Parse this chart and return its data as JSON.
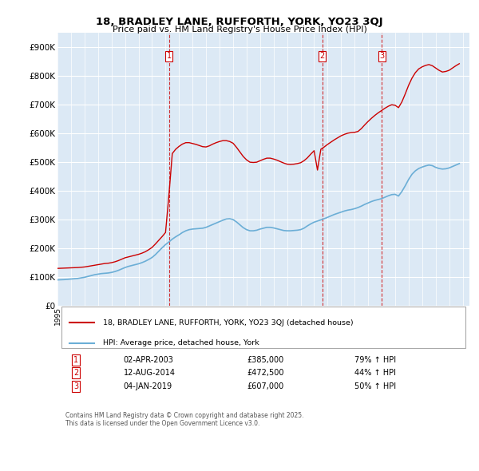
{
  "title": "18, BRADLEY LANE, RUFFORTH, YORK, YO23 3QJ",
  "subtitle": "Price paid vs. HM Land Registry's House Price Index (HPI)",
  "background_color": "#dce9f5",
  "plot_bg_color": "#dce9f5",
  "ylim": [
    0,
    950000
  ],
  "yticks": [
    0,
    100000,
    200000,
    300000,
    400000,
    500000,
    600000,
    700000,
    800000,
    900000
  ],
  "ytick_labels": [
    "£0",
    "£100K",
    "£200K",
    "£300K",
    "£400K",
    "£500K",
    "£600K",
    "£700K",
    "£800K",
    "£900K"
  ],
  "hpi_color": "#6baed6",
  "price_color": "#cc0000",
  "vline_color": "#cc0000",
  "sale_dates": [
    "2003-04-02",
    "2014-08-12",
    "2019-01-04"
  ],
  "sale_prices": [
    385000,
    472500,
    607000
  ],
  "sale_labels": [
    "1",
    "2",
    "3"
  ],
  "legend_label_price": "18, BRADLEY LANE, RUFFORTH, YORK, YO23 3QJ (detached house)",
  "legend_label_hpi": "HPI: Average price, detached house, York",
  "table_rows": [
    {
      "num": "1",
      "date": "02-APR-2003",
      "price": "£385,000",
      "change": "79% ↑ HPI"
    },
    {
      "num": "2",
      "date": "12-AUG-2014",
      "price": "£472,500",
      "change": "44% ↑ HPI"
    },
    {
      "num": "3",
      "date": "04-JAN-2019",
      "price": "£607,000",
      "change": "50% ↑ HPI"
    }
  ],
  "footer": "Contains HM Land Registry data © Crown copyright and database right 2025.\nThis data is licensed under the Open Government Licence v3.0.",
  "hpi_data": {
    "years": [
      1995,
      1995.25,
      1995.5,
      1995.75,
      1996,
      1996.25,
      1996.5,
      1996.75,
      1997,
      1997.25,
      1997.5,
      1997.75,
      1998,
      1998.25,
      1998.5,
      1998.75,
      1999,
      1999.25,
      1999.5,
      1999.75,
      2000,
      2000.25,
      2000.5,
      2000.75,
      2001,
      2001.25,
      2001.5,
      2001.75,
      2002,
      2002.25,
      2002.5,
      2002.75,
      2003,
      2003.25,
      2003.5,
      2003.75,
      2004,
      2004.25,
      2004.5,
      2004.75,
      2005,
      2005.25,
      2005.5,
      2005.75,
      2006,
      2006.25,
      2006.5,
      2006.75,
      2007,
      2007.25,
      2007.5,
      2007.75,
      2008,
      2008.25,
      2008.5,
      2008.75,
      2009,
      2009.25,
      2009.5,
      2009.75,
      2010,
      2010.25,
      2010.5,
      2010.75,
      2011,
      2011.25,
      2011.5,
      2011.75,
      2012,
      2012.25,
      2012.5,
      2012.75,
      2013,
      2013.25,
      2013.5,
      2013.75,
      2014,
      2014.25,
      2014.5,
      2014.75,
      2015,
      2015.25,
      2015.5,
      2015.75,
      2016,
      2016.25,
      2016.5,
      2016.75,
      2017,
      2017.25,
      2017.5,
      2017.75,
      2018,
      2018.25,
      2018.5,
      2018.75,
      2019,
      2019.25,
      2019.5,
      2019.75,
      2020,
      2020.25,
      2020.5,
      2020.75,
      2021,
      2021.25,
      2021.5,
      2021.75,
      2022,
      2022.25,
      2022.5,
      2022.75,
      2023,
      2023.25,
      2023.5,
      2023.75,
      2024,
      2024.25,
      2024.5,
      2024.75
    ],
    "values": [
      90000,
      90500,
      91000,
      92000,
      93000,
      94000,
      95000,
      97000,
      99000,
      102000,
      105000,
      108000,
      110000,
      112000,
      113000,
      114000,
      116000,
      119000,
      123000,
      128000,
      133000,
      137000,
      140000,
      143000,
      146000,
      150000,
      155000,
      161000,
      168000,
      178000,
      190000,
      202000,
      213000,
      222000,
      232000,
      240000,
      247000,
      255000,
      261000,
      265000,
      267000,
      268000,
      269000,
      270000,
      273000,
      278000,
      283000,
      288000,
      293000,
      298000,
      302000,
      303000,
      300000,
      292000,
      282000,
      272000,
      265000,
      261000,
      261000,
      263000,
      267000,
      270000,
      273000,
      273000,
      271000,
      268000,
      265000,
      262000,
      261000,
      261000,
      262000,
      263000,
      265000,
      270000,
      278000,
      285000,
      291000,
      295000,
      299000,
      303000,
      308000,
      313000,
      318000,
      322000,
      326000,
      330000,
      333000,
      335000,
      338000,
      342000,
      347000,
      353000,
      358000,
      363000,
      367000,
      370000,
      373000,
      378000,
      383000,
      387000,
      388000,
      382000,
      398000,
      418000,
      440000,
      458000,
      470000,
      478000,
      483000,
      487000,
      490000,
      488000,
      482000,
      478000,
      476000,
      477000,
      480000,
      485000,
      490000,
      495000
    ]
  },
  "price_data": {
    "years": [
      1995,
      1995.25,
      1995.5,
      1995.75,
      1996,
      1996.25,
      1996.5,
      1996.75,
      1997,
      1997.25,
      1997.5,
      1997.75,
      1998,
      1998.25,
      1998.5,
      1998.75,
      1999,
      1999.25,
      1999.5,
      1999.75,
      2000,
      2000.25,
      2000.5,
      2000.75,
      2001,
      2001.25,
      2001.5,
      2001.75,
      2002,
      2002.25,
      2002.5,
      2002.75,
      2003,
      2003.25,
      2003.5,
      2003.75,
      2004,
      2004.25,
      2004.5,
      2004.75,
      2005,
      2005.25,
      2005.5,
      2005.75,
      2006,
      2006.25,
      2006.5,
      2006.75,
      2007,
      2007.25,
      2007.5,
      2007.75,
      2008,
      2008.25,
      2008.5,
      2008.75,
      2009,
      2009.25,
      2009.5,
      2009.75,
      2010,
      2010.25,
      2010.5,
      2010.75,
      2011,
      2011.25,
      2011.5,
      2011.75,
      2012,
      2012.25,
      2012.5,
      2012.75,
      2013,
      2013.25,
      2013.5,
      2013.75,
      2014,
      2014.25,
      2014.5,
      2014.75,
      2015,
      2015.25,
      2015.5,
      2015.75,
      2016,
      2016.25,
      2016.5,
      2016.75,
      2017,
      2017.25,
      2017.5,
      2017.75,
      2018,
      2018.25,
      2018.5,
      2018.75,
      2019,
      2019.25,
      2019.5,
      2019.75,
      2020,
      2020.25,
      2020.5,
      2020.75,
      2021,
      2021.25,
      2021.5,
      2021.75,
      2022,
      2022.25,
      2022.5,
      2022.75,
      2023,
      2023.25,
      2023.5,
      2023.75,
      2024,
      2024.25,
      2024.5,
      2024.75
    ],
    "values": [
      130000,
      130500,
      131000,
      131500,
      132000,
      132500,
      133000,
      134000,
      135000,
      137000,
      139000,
      141000,
      143000,
      145000,
      147000,
      148000,
      150000,
      153000,
      157000,
      162000,
      167000,
      170000,
      173000,
      176000,
      179000,
      183000,
      188000,
      195000,
      203000,
      215000,
      228000,
      241000,
      255000,
      385000,
      530000,
      545000,
      555000,
      563000,
      568000,
      568000,
      565000,
      562000,
      558000,
      554000,
      553000,
      557000,
      563000,
      568000,
      572000,
      575000,
      575000,
      572000,
      566000,
      552000,
      536000,
      520000,
      508000,
      500000,
      499000,
      500000,
      505000,
      510000,
      514000,
      514000,
      511000,
      507000,
      502000,
      497000,
      493000,
      492000,
      493000,
      495000,
      498000,
      505000,
      515000,
      528000,
      540000,
      472500,
      545000,
      553000,
      562000,
      570000,
      578000,
      585000,
      592000,
      597000,
      601000,
      603000,
      604000,
      607000,
      617000,
      630000,
      642000,
      653000,
      663000,
      672000,
      680000,
      688000,
      695000,
      700000,
      698000,
      690000,
      710000,
      738000,
      768000,
      793000,
      812000,
      825000,
      832000,
      837000,
      840000,
      836000,
      828000,
      820000,
      814000,
      816000,
      820000,
      828000,
      836000,
      843000
    ]
  }
}
